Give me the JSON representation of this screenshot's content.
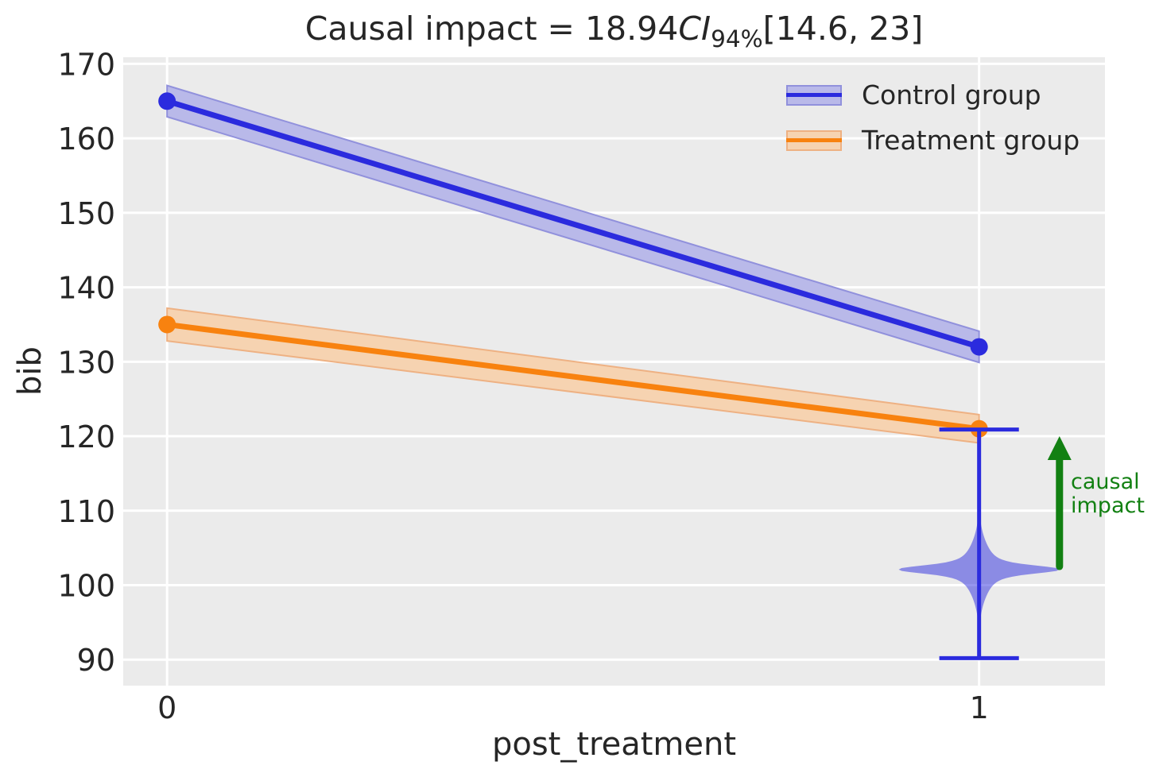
{
  "title": {
    "prefix": "Causal impact = 18.94",
    "ci": "CI",
    "ci_sub": "94%",
    "interval": "[14.6, 23]"
  },
  "annotation": {
    "line1": "causal",
    "line2": "impact",
    "color": "#128012"
  },
  "colors": {
    "figure_background": "#ffffff",
    "plot_background": "#ebebeb",
    "grid": "#ffffff",
    "text": "#262626",
    "control_blue": "#2b2bde",
    "treatment_orange": "#f8820f",
    "arrow_green": "#128012"
  },
  "chart_data": {
    "type": "line",
    "title": "Causal impact = 18.94 CI 94% [14.6, 23]",
    "xlabel": "post_treatment",
    "ylabel": "bib",
    "x": [
      0,
      1
    ],
    "x_ticks": [
      0,
      1
    ],
    "y_ticks": [
      90,
      100,
      110,
      120,
      130,
      140,
      150,
      160,
      170
    ],
    "xlim": [
      -0.054,
      1.155
    ],
    "ylim": [
      86.5,
      170.9
    ],
    "grid": true,
    "legend_position": "upper right",
    "background": "#ebebeb",
    "series": [
      {
        "name": "Control group",
        "values": [
          165,
          132
        ],
        "ci_low": [
          162.9,
          129.9
        ],
        "ci_high": [
          167.1,
          134.1
        ],
        "color": "#2b2bde",
        "band_color": "#b9b9e9",
        "band_edge": "#9191dc"
      },
      {
        "name": "Treatment group",
        "values": [
          135,
          121
        ],
        "ci_low": [
          132.8,
          119.1
        ],
        "ci_high": [
          137.2,
          122.9
        ],
        "color": "#f8820f",
        "band_color": "#f6d3b1",
        "band_edge": "#eeb183"
      }
    ],
    "violin": {
      "x": 1,
      "center": 102.1,
      "whisker_low": 90.2,
      "whisker_high": 120.9,
      "max_half_width_x": 0.099,
      "cap_half_width_x": 0.049,
      "color": "#2b2bde",
      "fill_opacity": 0.5
    },
    "arrow": {
      "x": 1.099,
      "y_from": 102.5,
      "y_to": 120,
      "color": "#128012",
      "label": "causal impact"
    }
  }
}
